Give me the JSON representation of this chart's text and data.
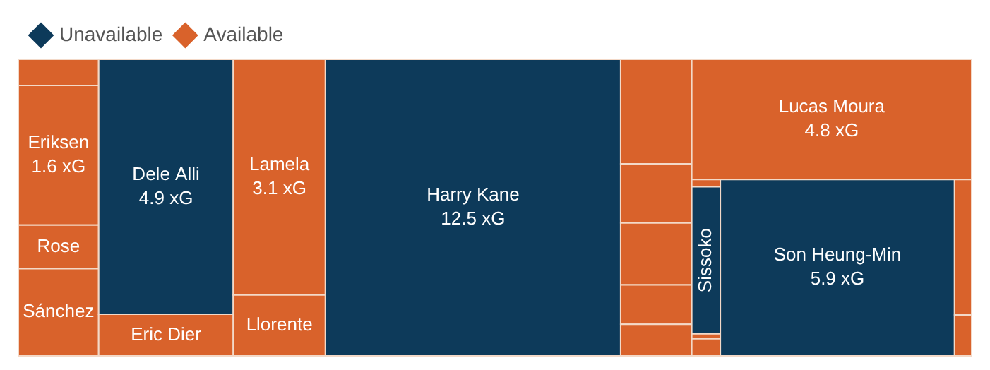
{
  "chart_data": {
    "type": "other",
    "legend": "top left",
    "categories": [
      null,
      "Eriksen",
      "Rose",
      "Sánchez",
      "Dele Alli",
      "Eric Dier",
      "Lamela",
      "Llorente",
      "Harry Kane",
      null,
      null,
      null,
      null,
      null,
      "Lucas Moura",
      null,
      "Sissoko",
      null,
      null,
      "Son Heung-Min",
      null,
      null
    ],
    "colors": [
      "#d9622b",
      "#d9622b",
      "#d9622b",
      "#d9622b",
      "#0d3a5a",
      "#d9622b",
      "#d9622b",
      "#d9622b",
      "#0d3a5a",
      "#d9622b",
      "#d9622b",
      "#d9622b",
      "#d9622b",
      "#d9622b",
      "#d9622b",
      "#d9622b",
      "#0d3a5a",
      "#d9622b",
      "#d9622b",
      "#0d3a5a",
      "#d9622b",
      "#d9622b"
    ],
    "series": [
      {
        "name": "Unavailable",
        "color": "#0d3a5a",
        "values": [
          null,
          null,
          null,
          null,
          4.9,
          null,
          null,
          null,
          12.5,
          null,
          null,
          null,
          null,
          null,
          null,
          null,
          null,
          null,
          null,
          5.9,
          null,
          null
        ],
        "value_labels": [
          null,
          null,
          null,
          null,
          "4.9 xG",
          null,
          null,
          null,
          "12.5 xG",
          null,
          null,
          null,
          null,
          null,
          null,
          null,
          null,
          null,
          null,
          "5.9 xG",
          null,
          null
        ]
      },
      {
        "name": "Available",
        "color": "#d9622b",
        "values": [
          null,
          1.6,
          null,
          null,
          null,
          null,
          3.1,
          null,
          null,
          null,
          null,
          null,
          null,
          null,
          4.8,
          null,
          null,
          null,
          null,
          null,
          null,
          null
        ],
        "value_labels": [
          null,
          "1.6 xG",
          null,
          null,
          null,
          null,
          "3.1 xG",
          null,
          null,
          null,
          null,
          null,
          null,
          null,
          "4.8 xG",
          null,
          null,
          null,
          null,
          null,
          null,
          null
        ]
      }
    ]
  }
}
